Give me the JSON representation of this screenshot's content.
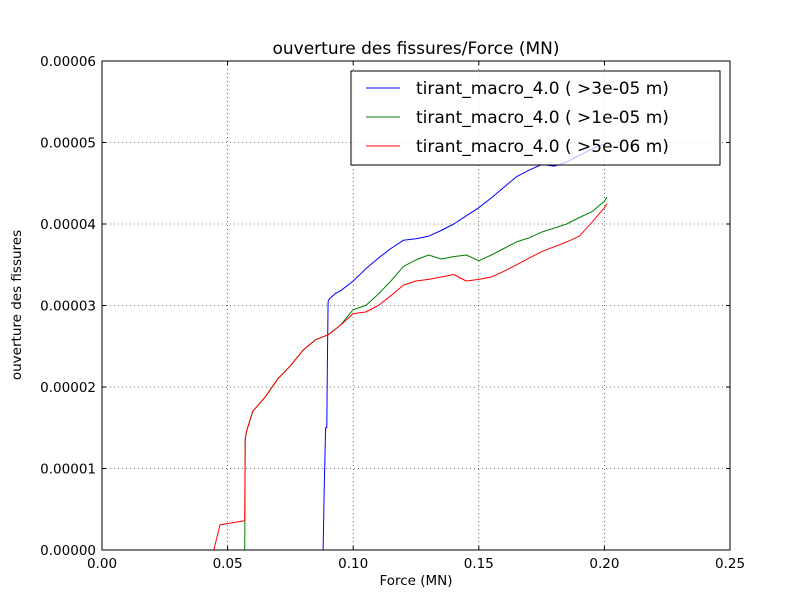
{
  "chart_data": {
    "type": "line",
    "title": "ouverture des fissures/Force (MN)",
    "xlabel": "Force (MN)",
    "ylabel": "ouverture des fissures",
    "xlim": [
      0.0,
      0.25
    ],
    "ylim": [
      0.0,
      6e-05
    ],
    "grid": true,
    "legend_position": "top-right",
    "x_ticks": [
      0.0,
      0.05,
      0.1,
      0.15,
      0.2,
      0.25
    ],
    "x_tick_labels": [
      "0.00",
      "0.05",
      "0.10",
      "0.15",
      "0.20",
      "0.25"
    ],
    "y_ticks": [
      0.0,
      1e-05,
      2e-05,
      3e-05,
      4e-05,
      5e-05,
      6e-05
    ],
    "y_tick_labels": [
      "0.00000",
      "0.00001",
      "0.00002",
      "0.00003",
      "0.00004",
      "0.00005",
      "0.00006"
    ],
    "series": [
      {
        "name": "tirant_macro_4.0 ( >3e-05 m)",
        "color": "#0000ff",
        "x": [
          0.088,
          0.0885,
          0.089,
          0.0895,
          0.0897,
          0.09,
          0.0905,
          0.093,
          0.095,
          0.1,
          0.105,
          0.11,
          0.115,
          0.12,
          0.125,
          0.13,
          0.135,
          0.14,
          0.145,
          0.15,
          0.155,
          0.16,
          0.165,
          0.17,
          0.175,
          0.18,
          0.185,
          0.19,
          0.195,
          0.2
        ],
        "y": [
          0.0,
          8e-06,
          1.5e-05,
          1.5e-05,
          2.2e-05,
          3.05e-05,
          3.08e-05,
          3.15e-05,
          3.18e-05,
          3.3e-05,
          3.45e-05,
          3.58e-05,
          3.7e-05,
          3.8e-05,
          3.82e-05,
          3.85e-05,
          3.92e-05,
          4e-05,
          4.1e-05,
          4.2e-05,
          4.32e-05,
          4.45e-05,
          4.58e-05,
          4.66e-05,
          4.73e-05,
          4.71e-05,
          4.76e-05,
          4.84e-05,
          4.92e-05,
          4.98e-05
        ]
      },
      {
        "name": "tirant_macro_4.0 ( >1e-05 m)",
        "color": "#008000",
        "x": [
          0.0568,
          0.0569,
          0.057,
          0.0575,
          0.06,
          0.065,
          0.07,
          0.075,
          0.08,
          0.085,
          0.09,
          0.095,
          0.1,
          0.105,
          0.11,
          0.115,
          0.12,
          0.125,
          0.13,
          0.135,
          0.14,
          0.145,
          0.15,
          0.155,
          0.16,
          0.165,
          0.17,
          0.175,
          0.18,
          0.185,
          0.19,
          0.195,
          0.2,
          0.201
        ],
        "y": [
          0.0,
          3.6e-06,
          1.35e-05,
          1.45e-05,
          1.7e-05,
          1.88e-05,
          2.1e-05,
          2.26e-05,
          2.45e-05,
          2.58e-05,
          2.64e-05,
          2.76e-05,
          2.95e-05,
          3e-05,
          3.14e-05,
          3.3e-05,
          3.48e-05,
          3.56e-05,
          3.62e-05,
          3.57e-05,
          3.6e-05,
          3.62e-05,
          3.55e-05,
          3.62e-05,
          3.7e-05,
          3.78e-05,
          3.83e-05,
          3.9e-05,
          3.95e-05,
          4e-05,
          4.08e-05,
          4.15e-05,
          4.28e-05,
          4.33e-05
        ]
      },
      {
        "name": "tirant_macro_4.0 ( >5e-06 m)",
        "color": "#ff0000",
        "x": [
          0.0445,
          0.047,
          0.0568,
          0.057,
          0.0575,
          0.06,
          0.065,
          0.07,
          0.075,
          0.08,
          0.085,
          0.09,
          0.095,
          0.1,
          0.105,
          0.11,
          0.115,
          0.12,
          0.125,
          0.13,
          0.135,
          0.14,
          0.145,
          0.15,
          0.155,
          0.16,
          0.165,
          0.17,
          0.175,
          0.18,
          0.185,
          0.19,
          0.195,
          0.2,
          0.201
        ],
        "y": [
          0.0,
          3.1e-06,
          3.6e-06,
          1.35e-05,
          1.45e-05,
          1.7e-05,
          1.88e-05,
          2.1e-05,
          2.26e-05,
          2.45e-05,
          2.58e-05,
          2.64e-05,
          2.76e-05,
          2.9e-05,
          2.92e-05,
          3e-05,
          3.12e-05,
          3.25e-05,
          3.3e-05,
          3.32e-05,
          3.35e-05,
          3.38e-05,
          3.3e-05,
          3.32e-05,
          3.35e-05,
          3.42e-05,
          3.5e-05,
          3.58e-05,
          3.66e-05,
          3.72e-05,
          3.78e-05,
          3.85e-05,
          4.02e-05,
          4.2e-05,
          4.25e-05
        ]
      }
    ]
  }
}
